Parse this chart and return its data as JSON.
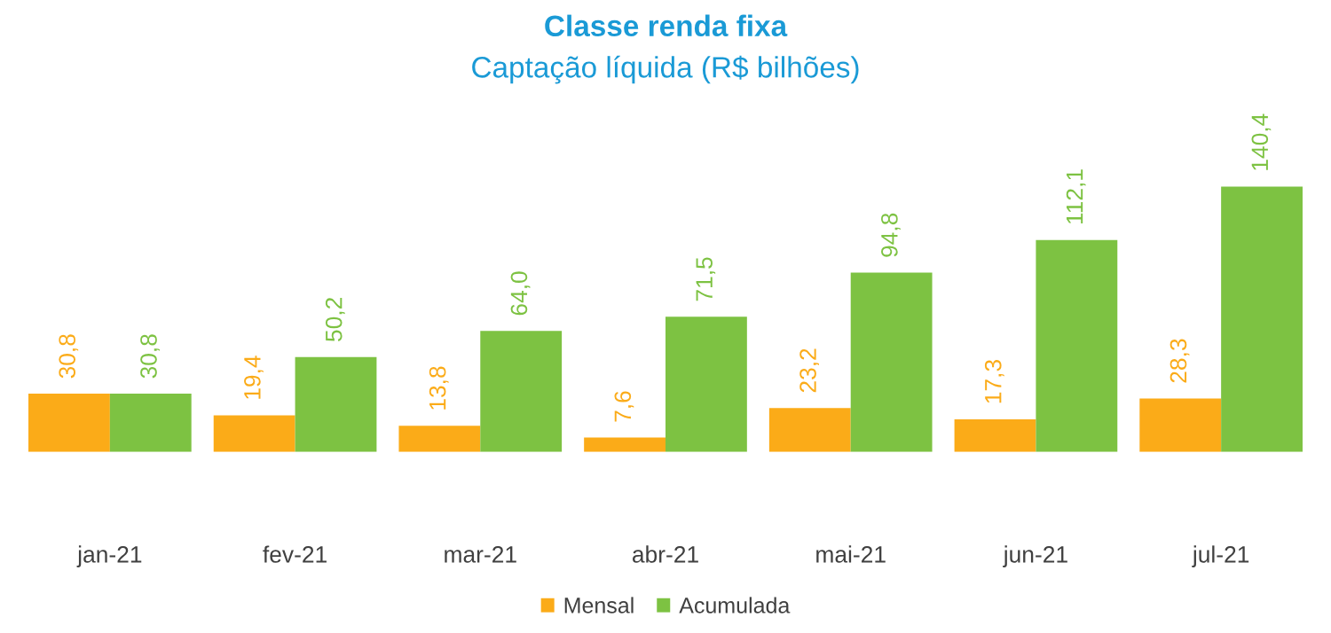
{
  "chart_data": {
    "type": "bar",
    "title": "Classe renda fixa",
    "subtitle": "Captação líquida (R$ bilhões)",
    "categories": [
      "jan-21",
      "fev-21",
      "mar-21",
      "abr-21",
      "mai-21",
      "jun-21",
      "jul-21"
    ],
    "series": [
      {
        "name": "Mensal",
        "color": "#fbab18",
        "values": [
          30.8,
          19.4,
          13.8,
          7.6,
          23.2,
          17.3,
          28.3
        ],
        "value_labels": [
          "30,8",
          "19,4",
          "13,8",
          "7,6",
          "23,2",
          "17,3",
          "28,3"
        ]
      },
      {
        "name": "Acumulada",
        "color": "#7dc242",
        "values": [
          30.8,
          50.2,
          64.0,
          71.5,
          94.8,
          112.1,
          140.4
        ],
        "value_labels": [
          "30,8",
          "50,2",
          "64,0",
          "71,5",
          "94,8",
          "112,1",
          "140,4"
        ]
      }
    ],
    "legend": "bottom",
    "grid": false
  }
}
